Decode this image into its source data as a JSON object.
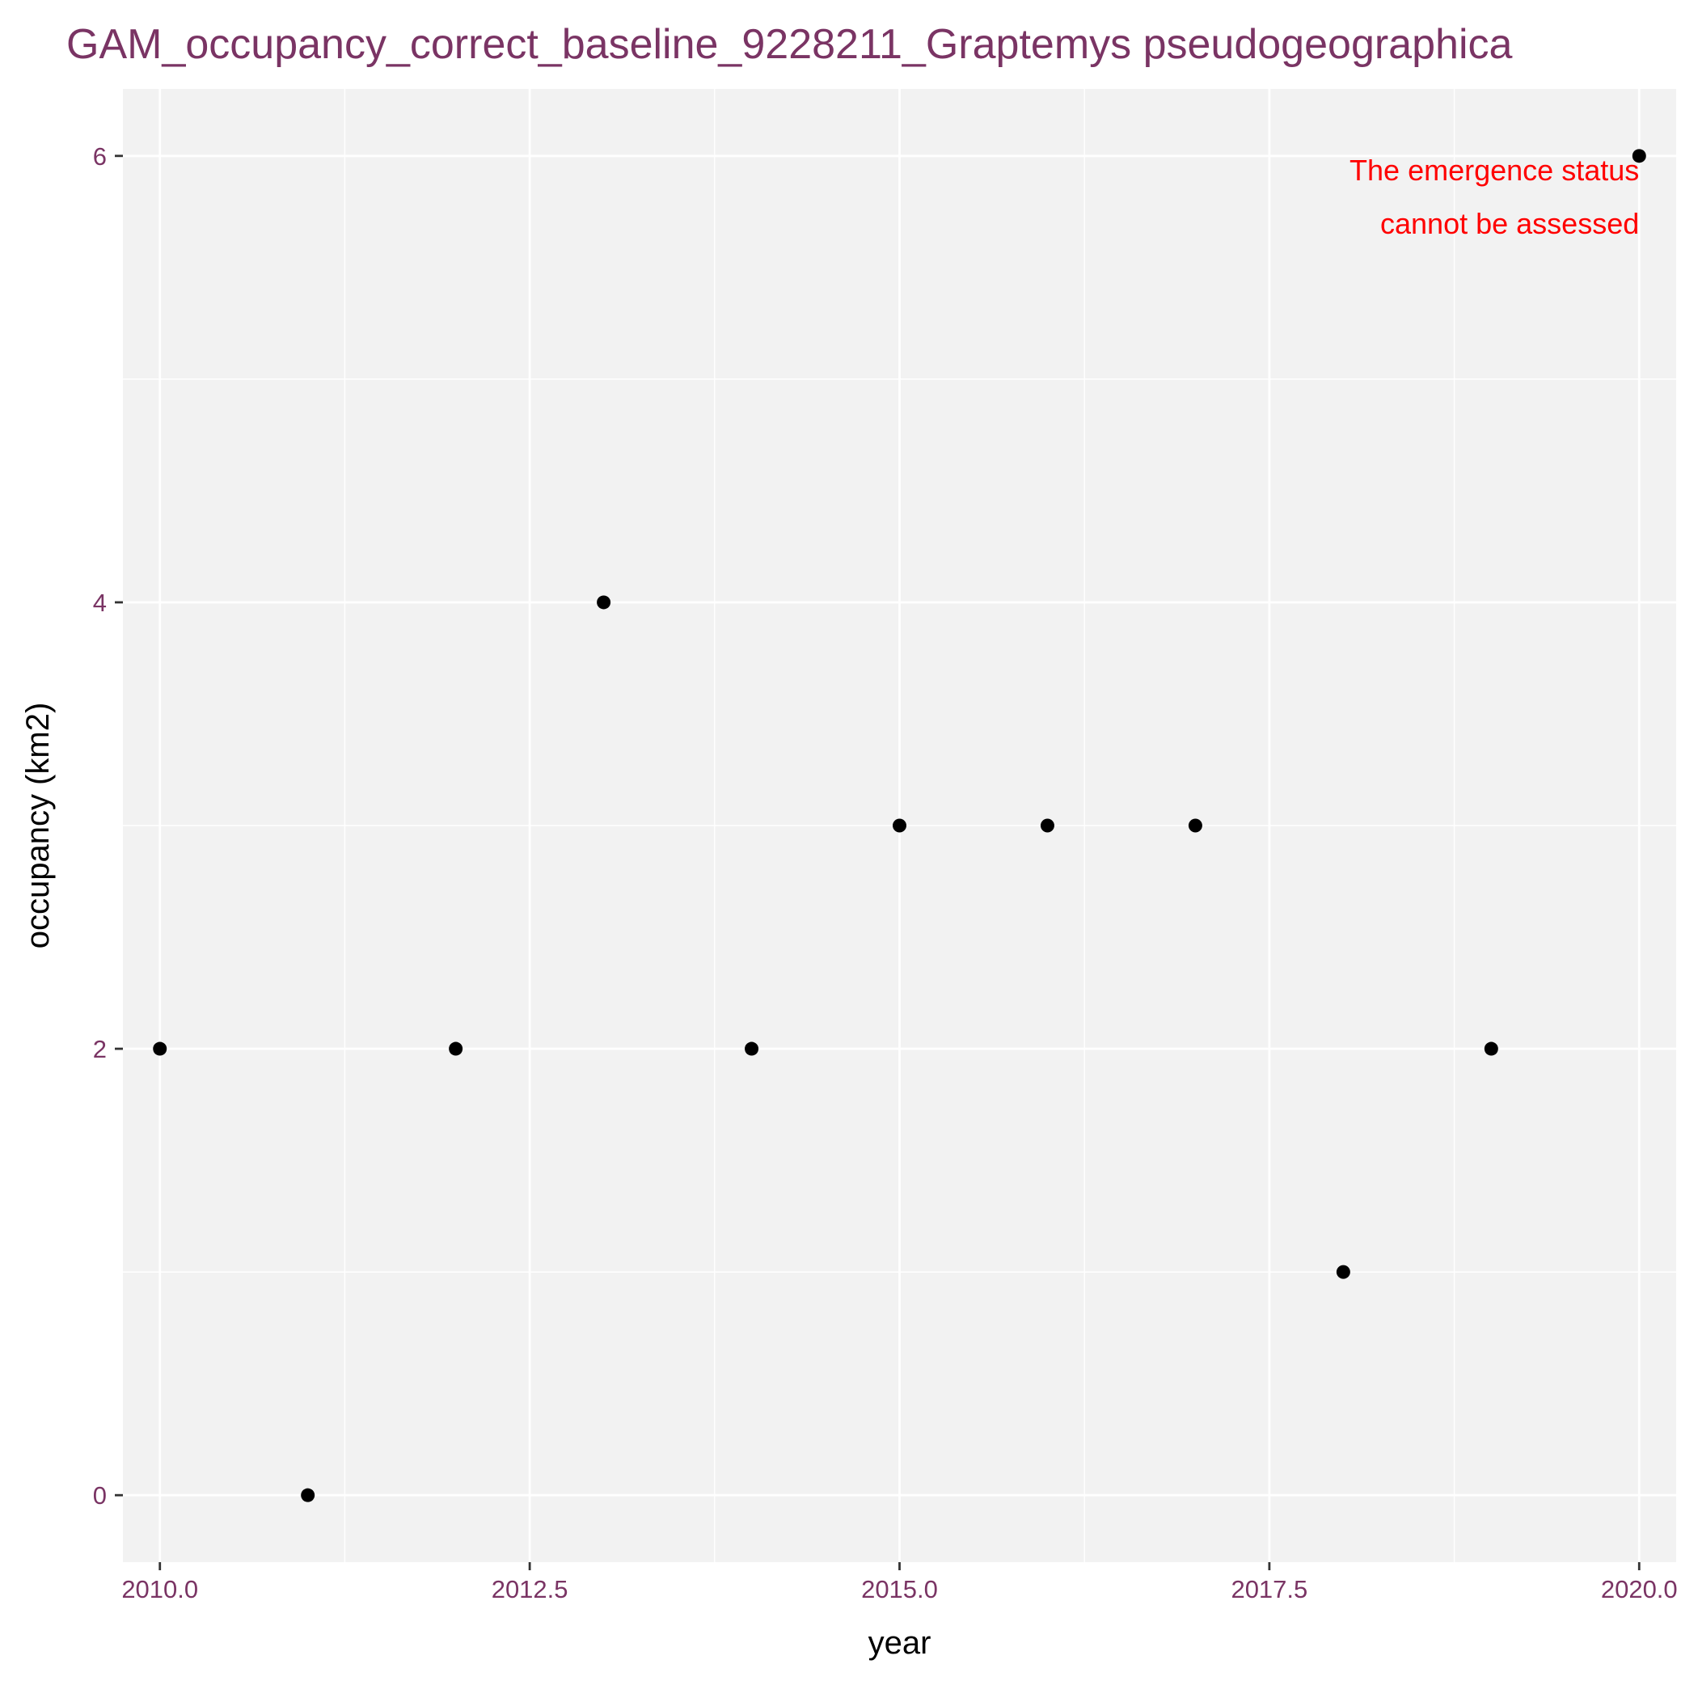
{
  "colors": {
    "panel_background": "#f2f2f2",
    "grid": "#ffffff",
    "title": "#7a3464",
    "tick_labels": "#7a3464",
    "axis_titles": "#000000",
    "ticks": "#333333",
    "points": "#000000",
    "annotation": "#ff0000"
  },
  "chart_data": {
    "type": "scatter",
    "title": "GAM_occupancy_correct_baseline_9228211_Graptemys pseudogeographica",
    "xlabel": "year",
    "ylabel": "occupancy (km2)",
    "xlim": [
      2009.75,
      2020.25
    ],
    "ylim": [
      -0.3,
      6.3
    ],
    "x_ticks": [
      2010.0,
      2012.5,
      2015.0,
      2017.5,
      2020.0
    ],
    "x_tick_labels": [
      "2010.0",
      "2012.5",
      "2015.0",
      "2017.5",
      "2020.0"
    ],
    "x_minor_gridlines": [
      2011.25,
      2013.75,
      2016.25,
      2018.75
    ],
    "y_ticks": [
      0,
      2,
      4,
      6
    ],
    "y_tick_labels": [
      "0",
      "2",
      "4",
      "6"
    ],
    "y_minor_gridlines": [
      1,
      3,
      5
    ],
    "grid": true,
    "legend": "none",
    "x": [
      2010,
      2011,
      2012,
      2013,
      2014,
      2015,
      2016,
      2017,
      2018,
      2019,
      2020
    ],
    "y": [
      2,
      0,
      2,
      4,
      2,
      3,
      3,
      3,
      1,
      2,
      6
    ],
    "annotation": {
      "lines": [
        "The emergence status",
        "cannot be assessed"
      ],
      "x": 2020,
      "y": 6,
      "align": "right"
    }
  }
}
